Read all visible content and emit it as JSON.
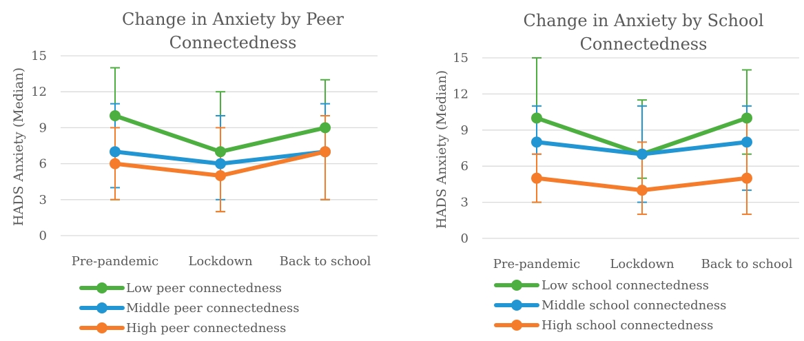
{
  "chart_data": [
    {
      "type": "line",
      "title_lines": [
        "Change in Anxiety by  Peer",
        "Connectedness"
      ],
      "xlabel": "",
      "ylabel": "HADS Anxiety (Median)",
      "categories": [
        "Pre-pandemic",
        "Lockdown",
        "Back to school"
      ],
      "ylim": [
        0,
        15
      ],
      "yticks": [
        "0",
        "3",
        "6",
        "9",
        "12",
        "15"
      ],
      "grid": true,
      "legend_position": "bottom",
      "series": [
        {
          "name": "Low peer connectedness",
          "color": "#4CAF3F",
          "values": [
            10,
            7,
            9
          ],
          "err_low": [
            3,
            2,
            3
          ],
          "err_high": [
            14,
            12,
            13
          ]
        },
        {
          "name": "Middle peer connectedness",
          "color": "#2196D3",
          "values": [
            7,
            6,
            7
          ],
          "err_low": [
            4,
            3,
            3
          ],
          "err_high": [
            11,
            10,
            11
          ]
        },
        {
          "name": "High peer connectedness",
          "color": "#F57C2B",
          "values": [
            6,
            5,
            7
          ],
          "err_low": [
            3,
            2,
            3
          ],
          "err_high": [
            9,
            9,
            10
          ]
        }
      ]
    },
    {
      "type": "line",
      "title_lines": [
        "Change in Anxiety by School",
        "Connectedness"
      ],
      "xlabel": "",
      "ylabel": "HADS Anxiety (Median)",
      "categories": [
        "Pre-pandemic",
        "Lockdown",
        "Back to school"
      ],
      "ylim": [
        0,
        15
      ],
      "yticks": [
        "0",
        "3",
        "6",
        "9",
        "12",
        "15"
      ],
      "grid": true,
      "legend_position": "bottom",
      "series": [
        {
          "name": "Low school connectedness",
          "color": "#4CAF3F",
          "values": [
            10,
            7,
            10
          ],
          "err_low": [
            3,
            5,
            7
          ],
          "err_high": [
            15,
            11.5,
            14
          ]
        },
        {
          "name": "Middle school connectedness",
          "color": "#2196D3",
          "values": [
            8,
            7,
            8
          ],
          "err_low": [
            7,
            3,
            4
          ],
          "err_high": [
            11,
            11,
            11
          ]
        },
        {
          "name": "High school connectedness",
          "color": "#F57C2B",
          "values": [
            5,
            4,
            5
          ],
          "err_low": [
            3,
            2,
            2
          ],
          "err_high": [
            7,
            8,
            10
          ]
        }
      ]
    }
  ]
}
